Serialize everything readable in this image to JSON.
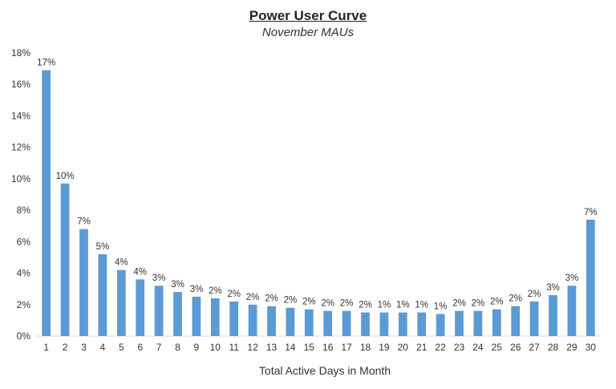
{
  "chart_data": {
    "type": "bar",
    "title": "Power User Curve",
    "subtitle": "November MAUs",
    "xlabel": "Total Active Days in Month",
    "ylabel": "",
    "categories": [
      "1",
      "2",
      "3",
      "4",
      "5",
      "6",
      "7",
      "8",
      "9",
      "10",
      "11",
      "12",
      "13",
      "14",
      "15",
      "16",
      "17",
      "18",
      "19",
      "20",
      "21",
      "22",
      "23",
      "24",
      "25",
      "26",
      "27",
      "28",
      "29",
      "30"
    ],
    "values": [
      16.9,
      9.7,
      6.8,
      5.2,
      4.2,
      3.6,
      3.2,
      2.8,
      2.5,
      2.4,
      2.2,
      2.0,
      1.9,
      1.8,
      1.7,
      1.6,
      1.6,
      1.5,
      1.5,
      1.5,
      1.5,
      1.4,
      1.6,
      1.6,
      1.7,
      1.9,
      2.2,
      2.6,
      3.2,
      7.4
    ],
    "data_labels": [
      "17%",
      "10%",
      "7%",
      "5%",
      "4%",
      "4%",
      "3%",
      "3%",
      "3%",
      "2%",
      "2%",
      "2%",
      "2%",
      "2%",
      "2%",
      "2%",
      "2%",
      "2%",
      "1%",
      "1%",
      "1%",
      "1%",
      "2%",
      "2%",
      "2%",
      "2%",
      "2%",
      "3%",
      "3%",
      "7%"
    ],
    "yticks": [
      "0%",
      "2%",
      "4%",
      "6%",
      "8%",
      "10%",
      "12%",
      "14%",
      "16%",
      "18%"
    ],
    "ylim": [
      0,
      18
    ],
    "bar_color": "#5b9bd5",
    "grid": false,
    "legend": "none"
  }
}
